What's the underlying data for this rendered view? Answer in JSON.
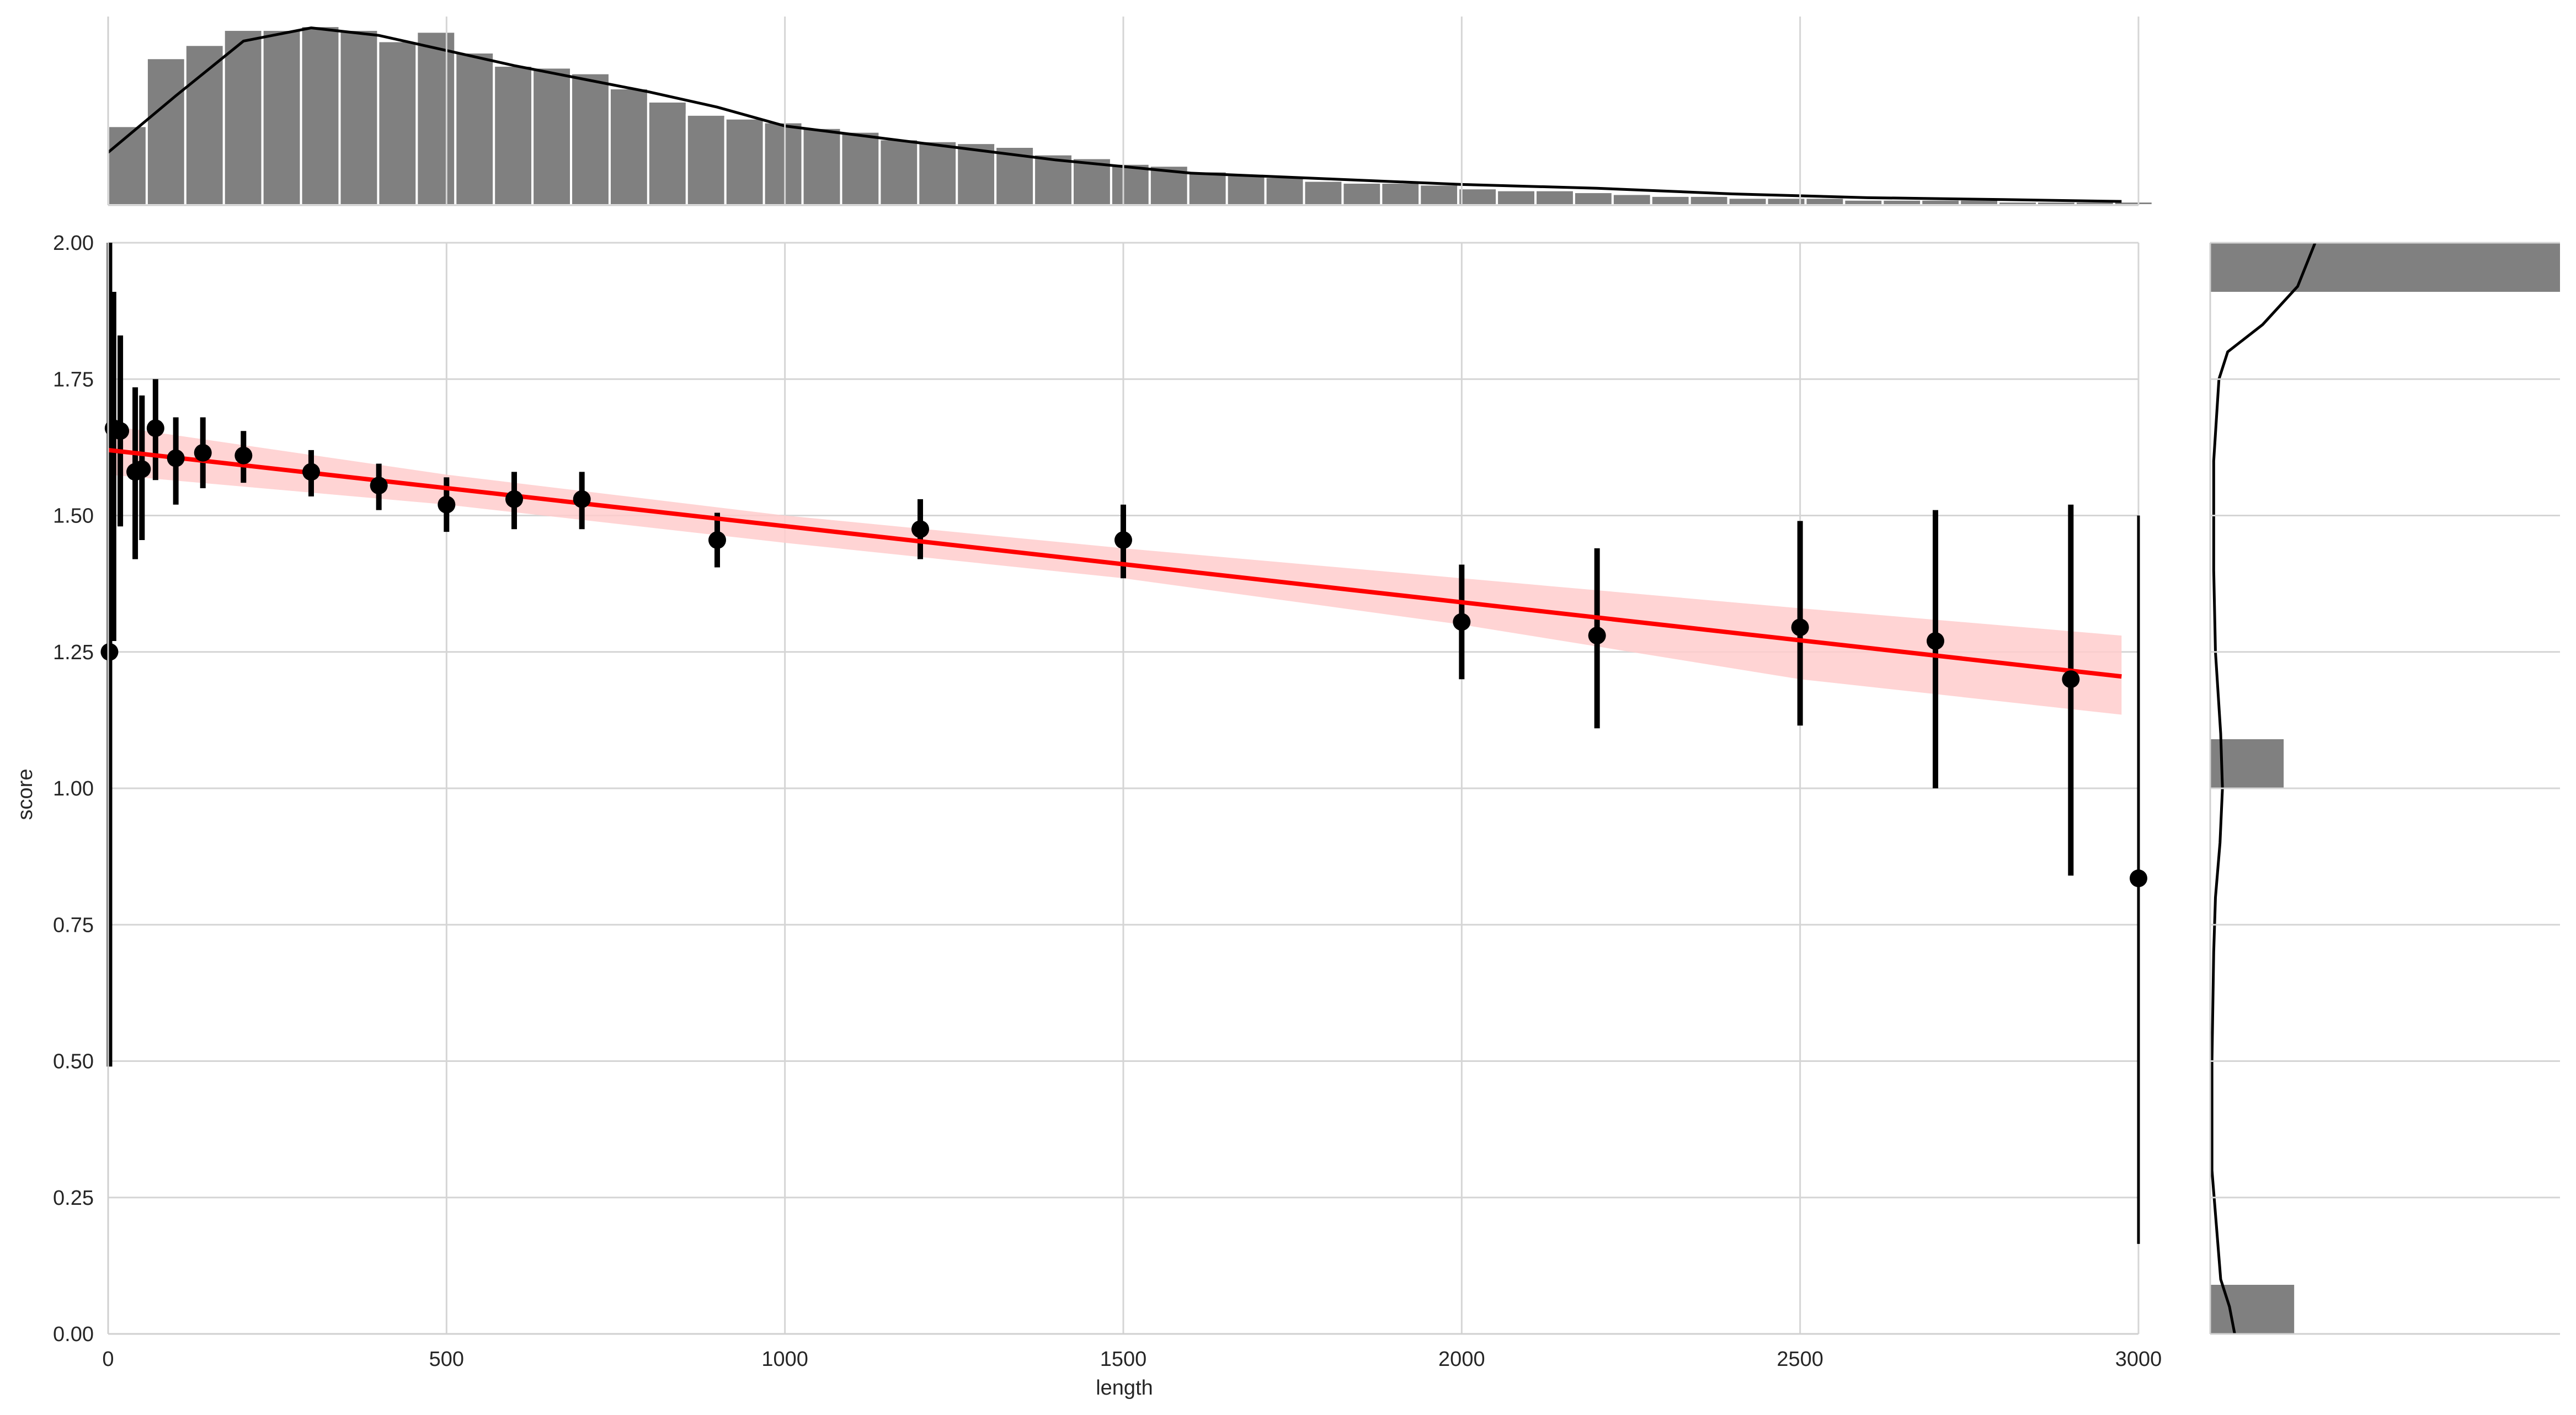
{
  "chart_data": {
    "type": "scatter",
    "xlabel": "length",
    "ylabel": "score",
    "xlim": [
      0,
      3000
    ],
    "ylim": [
      0,
      2
    ],
    "xticks": [
      "0",
      "500",
      "1000",
      "1500",
      "2000",
      "2500",
      "3000"
    ],
    "yticks": [
      "0.00",
      "0.25",
      "0.50",
      "0.75",
      "1.00",
      "1.25",
      "1.50",
      "1.75",
      "2.00"
    ],
    "grid": true,
    "colors": {
      "points": "#000000",
      "regression_line": "#ff0000",
      "confidence_band": "#ffcccc",
      "histogram": "#808080",
      "kde": "#000000",
      "grid": "#d5d5d5"
    },
    "points": [
      {
        "x": 2,
        "y": 1.25,
        "low": 0.49,
        "high": 2.0
      },
      {
        "x": 8,
        "y": 1.66,
        "low": 1.27,
        "high": 1.91
      },
      {
        "x": 18,
        "y": 1.655,
        "low": 1.48,
        "high": 1.83
      },
      {
        "x": 40,
        "y": 1.58,
        "low": 1.42,
        "high": 1.735
      },
      {
        "x": 50,
        "y": 1.585,
        "low": 1.455,
        "high": 1.72
      },
      {
        "x": 70,
        "y": 1.66,
        "low": 1.565,
        "high": 1.75
      },
      {
        "x": 100,
        "y": 1.605,
        "low": 1.52,
        "high": 1.68
      },
      {
        "x": 140,
        "y": 1.615,
        "low": 1.55,
        "high": 1.68
      },
      {
        "x": 200,
        "y": 1.61,
        "low": 1.56,
        "high": 1.655
      },
      {
        "x": 300,
        "y": 1.58,
        "low": 1.535,
        "high": 1.62
      },
      {
        "x": 400,
        "y": 1.555,
        "low": 1.51,
        "high": 1.595
      },
      {
        "x": 500,
        "y": 1.52,
        "low": 1.47,
        "high": 1.57
      },
      {
        "x": 600,
        "y": 1.53,
        "low": 1.475,
        "high": 1.58
      },
      {
        "x": 700,
        "y": 1.53,
        "low": 1.475,
        "high": 1.58
      },
      {
        "x": 900,
        "y": 1.455,
        "low": 1.405,
        "high": 1.505
      },
      {
        "x": 1200,
        "y": 1.475,
        "low": 1.42,
        "high": 1.53
      },
      {
        "x": 1500,
        "y": 1.455,
        "low": 1.385,
        "high": 1.52
      },
      {
        "x": 2000,
        "y": 1.305,
        "low": 1.2,
        "high": 1.41
      },
      {
        "x": 2200,
        "y": 1.28,
        "low": 1.11,
        "high": 1.44
      },
      {
        "x": 2500,
        "y": 1.295,
        "low": 1.115,
        "high": 1.49
      },
      {
        "x": 2700,
        "y": 1.27,
        "low": 1.0,
        "high": 1.51
      },
      {
        "x": 2900,
        "y": 1.2,
        "low": 0.84,
        "high": 1.52
      },
      {
        "x": 3000,
        "y": 0.835,
        "low": 0.165,
        "high": 1.5
      }
    ],
    "regression": {
      "x": [
        0,
        2975
      ],
      "y": [
        1.62,
        1.205
      ],
      "band": [
        {
          "x": 0,
          "low": 1.575,
          "high": 1.665
        },
        {
          "x": 500,
          "low": 1.52,
          "high": 1.575
        },
        {
          "x": 1000,
          "low": 1.45,
          "high": 1.5
        },
        {
          "x": 1500,
          "low": 1.385,
          "high": 1.44
        },
        {
          "x": 2000,
          "low": 1.3,
          "high": 1.385
        },
        {
          "x": 2500,
          "low": 1.2,
          "high": 1.33
        },
        {
          "x": 2975,
          "low": 1.135,
          "high": 1.28
        }
      ]
    },
    "marginal_x": {
      "bin_width": 57,
      "counts": [
        42,
        78,
        85,
        93,
        93,
        95,
        93,
        87,
        92,
        81,
        74,
        73,
        70,
        62,
        55,
        48,
        46,
        44,
        41,
        39,
        35,
        34,
        33,
        31,
        27,
        25,
        22,
        21,
        18,
        16,
        15,
        13,
        12,
        12,
        11,
        9,
        8,
        8,
        7,
        6,
        5,
        5,
        4,
        4,
        4,
        3,
        3,
        3,
        3,
        2,
        2,
        2,
        2
      ],
      "max": 100,
      "kde": [
        [
          0,
          28
        ],
        [
          100,
          58
        ],
        [
          200,
          87
        ],
        [
          300,
          94
        ],
        [
          400,
          90
        ],
        [
          500,
          82
        ],
        [
          600,
          74
        ],
        [
          700,
          67
        ],
        [
          800,
          60
        ],
        [
          900,
          52
        ],
        [
          1000,
          42
        ],
        [
          1200,
          33
        ],
        [
          1400,
          24
        ],
        [
          1600,
          17
        ],
        [
          1800,
          14
        ],
        [
          2000,
          11
        ],
        [
          2200,
          9
        ],
        [
          2400,
          6
        ],
        [
          2600,
          4
        ],
        [
          2800,
          3
        ],
        [
          2975,
          2
        ]
      ]
    },
    "marginal_y": {
      "bars": [
        {
          "from": 1.91,
          "to": 2.0,
          "count": 100
        },
        {
          "from": 1.0,
          "to": 1.09,
          "count": 21
        },
        {
          "from": 0.0,
          "to": 0.09,
          "count": 24
        }
      ],
      "max": 100,
      "kde": [
        [
          2.0,
          30
        ],
        [
          1.92,
          25
        ],
        [
          1.85,
          15
        ],
        [
          1.8,
          5
        ],
        [
          1.75,
          2.5
        ],
        [
          1.6,
          1
        ],
        [
          1.4,
          1
        ],
        [
          1.25,
          1.5
        ],
        [
          1.1,
          3
        ],
        [
          1.0,
          3.5
        ],
        [
          0.9,
          2.8
        ],
        [
          0.8,
          1.5
        ],
        [
          0.7,
          1
        ],
        [
          0.5,
          0.5
        ],
        [
          0.3,
          0.5
        ],
        [
          0.1,
          3
        ],
        [
          0.05,
          5.5
        ],
        [
          0.0,
          7
        ]
      ]
    }
  }
}
